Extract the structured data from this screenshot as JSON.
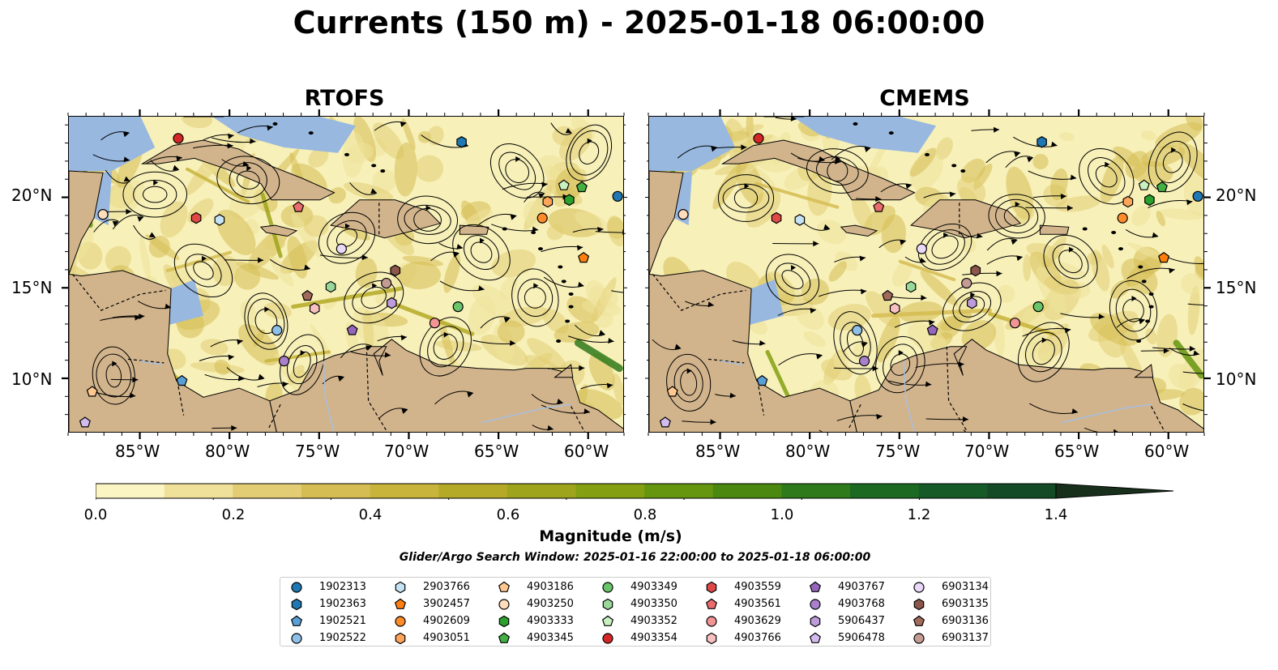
{
  "title": "Currents (150 m) - 2025-01-18 06:00:00",
  "panels": [
    {
      "title": "RTOFS"
    },
    {
      "title": "CMEMS"
    }
  ],
  "axes": {
    "x_ticks": [
      "85°W",
      "80°W",
      "75°W",
      "70°W",
      "65°W",
      "60°W"
    ],
    "y_ticks": [
      "20°N",
      "15°N",
      "10°N"
    ]
  },
  "map_data": {
    "lon_range": [
      -89.0,
      -58.0
    ],
    "lat_range": [
      7.0,
      24.5
    ],
    "x_tick_values": [
      -85,
      -80,
      -75,
      -70,
      -65,
      -60
    ],
    "y_tick_values": [
      20,
      15,
      10
    ]
  },
  "colorbar": {
    "label": "Magnitude (m/s)",
    "ticks": [
      "0.0",
      "0.2",
      "0.4",
      "0.6",
      "0.8",
      "1.0",
      "1.2",
      "1.4"
    ],
    "tick_values": [
      0.0,
      0.2,
      0.4,
      0.6,
      0.8,
      1.0,
      1.2,
      1.4
    ],
    "range": [
      0.0,
      1.6
    ],
    "extend": "max",
    "colors": [
      "#fbf5c4",
      "#efe19a",
      "#e2cd74",
      "#d6bd53",
      "#c8b43a",
      "#b5aa27",
      "#9ea51c",
      "#84a012",
      "#66950f",
      "#4a880f",
      "#2f7a1a",
      "#1c6a22",
      "#165a28",
      "#144a25",
      "#163b20",
      "#18301b"
    ]
  },
  "subtitle": "Glider/Argo Search Window: 2025-01-16 22:00:00 to 2025-01-18 06:00:00",
  "colors": {
    "ocean_low": "#f7f0b8",
    "land": "#d2b48c",
    "water_bg": "#98b8e0"
  },
  "legend": [
    {
      "id": "1902313",
      "color": "#1f77b4",
      "shape": "circle"
    },
    {
      "id": "1902363",
      "color": "#1f77b4",
      "shape": "hexagon"
    },
    {
      "id": "1902521",
      "color": "#5aa0d8",
      "shape": "pentagon"
    },
    {
      "id": "1902522",
      "color": "#8fc0e8",
      "shape": "circle"
    },
    {
      "id": "2903766",
      "color": "#c6e2f5",
      "shape": "hexagon"
    },
    {
      "id": "3902457",
      "color": "#ff7f0e",
      "shape": "pentagon"
    },
    {
      "id": "4902609",
      "color": "#ff8c28",
      "shape": "circle"
    },
    {
      "id": "4903051",
      "color": "#ffa55a",
      "shape": "hexagon"
    },
    {
      "id": "4903186",
      "color": "#ffc890",
      "shape": "pentagon"
    },
    {
      "id": "4903250",
      "color": "#ffdcbc",
      "shape": "circle"
    },
    {
      "id": "4903333",
      "color": "#2ca02c",
      "shape": "hexagon"
    },
    {
      "id": "4903345",
      "color": "#44b044",
      "shape": "pentagon"
    },
    {
      "id": "4903349",
      "color": "#6ac46a",
      "shape": "circle"
    },
    {
      "id": "4903350",
      "color": "#9ad89a",
      "shape": "hexagon"
    },
    {
      "id": "4903352",
      "color": "#c8f0c0",
      "shape": "pentagon"
    },
    {
      "id": "4903354",
      "color": "#d62728",
      "shape": "circle"
    },
    {
      "id": "4903559",
      "color": "#e04848",
      "shape": "hexagon"
    },
    {
      "id": "4903561",
      "color": "#ea6c6c",
      "shape": "pentagon"
    },
    {
      "id": "4903629",
      "color": "#f29494",
      "shape": "circle"
    },
    {
      "id": "4903766",
      "color": "#f8c0c0",
      "shape": "hexagon"
    },
    {
      "id": "4903767",
      "color": "#9467bd",
      "shape": "pentagon"
    },
    {
      "id": "4903768",
      "color": "#a880cc",
      "shape": "circle"
    },
    {
      "id": "5906437",
      "color": "#bc9cdc",
      "shape": "hexagon"
    },
    {
      "id": "5906478",
      "color": "#d2bcee",
      "shape": "pentagon"
    },
    {
      "id": "6903134",
      "color": "#ead8f8",
      "shape": "circle"
    },
    {
      "id": "6903135",
      "color": "#8c564b",
      "shape": "hexagon"
    },
    {
      "id": "6903136",
      "color": "#a06a5c",
      "shape": "pentagon"
    },
    {
      "id": "6903137",
      "color": "#c49c94",
      "shape": "circle"
    }
  ],
  "floats": [
    {
      "id": "1902313",
      "lon": -58.4,
      "lat": 20.1
    },
    {
      "id": "1902363",
      "lon": -67.1,
      "lat": 23.1
    },
    {
      "id": "1902521",
      "lon": -82.7,
      "lat": 9.9
    },
    {
      "id": "1902522",
      "lon": -77.4,
      "lat": 12.7
    },
    {
      "id": "2903766",
      "lon": -80.6,
      "lat": 18.8
    },
    {
      "id": "3902457",
      "lon": -60.3,
      "lat": 16.7
    },
    {
      "id": "4902609",
      "lon": -62.6,
      "lat": 18.9
    },
    {
      "id": "4903051",
      "lon": -62.3,
      "lat": 19.8
    },
    {
      "id": "4903186",
      "lon": -87.7,
      "lat": 9.3
    },
    {
      "id": "4903250",
      "lon": -87.1,
      "lat": 19.1
    },
    {
      "id": "4903333",
      "lon": -61.1,
      "lat": 19.9
    },
    {
      "id": "4903345",
      "lon": -60.4,
      "lat": 20.6
    },
    {
      "id": "4903349",
      "lon": -67.3,
      "lat": 14.0
    },
    {
      "id": "4903350",
      "lon": -74.4,
      "lat": 15.1
    },
    {
      "id": "4903352",
      "lon": -61.4,
      "lat": 20.7
    },
    {
      "id": "4903354",
      "lon": -82.9,
      "lat": 23.3
    },
    {
      "id": "4903559",
      "lon": -81.9,
      "lat": 18.9
    },
    {
      "id": "4903561",
      "lon": -76.2,
      "lat": 19.5
    },
    {
      "id": "4903629",
      "lon": -68.6,
      "lat": 13.1
    },
    {
      "id": "4903766",
      "lon": -75.3,
      "lat": 13.9
    },
    {
      "id": "4903767",
      "lon": -73.2,
      "lat": 12.7
    },
    {
      "id": "4903768",
      "lon": -77.0,
      "lat": 11.0
    },
    {
      "id": "5906437",
      "lon": -71.0,
      "lat": 14.2
    },
    {
      "id": "5906478",
      "lon": -88.1,
      "lat": 7.6
    },
    {
      "id": "6903134",
      "lon": -73.8,
      "lat": 17.2
    },
    {
      "id": "6903135",
      "lon": -70.8,
      "lat": 16.0
    },
    {
      "id": "6903136",
      "lon": -75.7,
      "lat": 14.6
    },
    {
      "id": "6903137",
      "lon": -71.3,
      "lat": 15.3
    }
  ]
}
